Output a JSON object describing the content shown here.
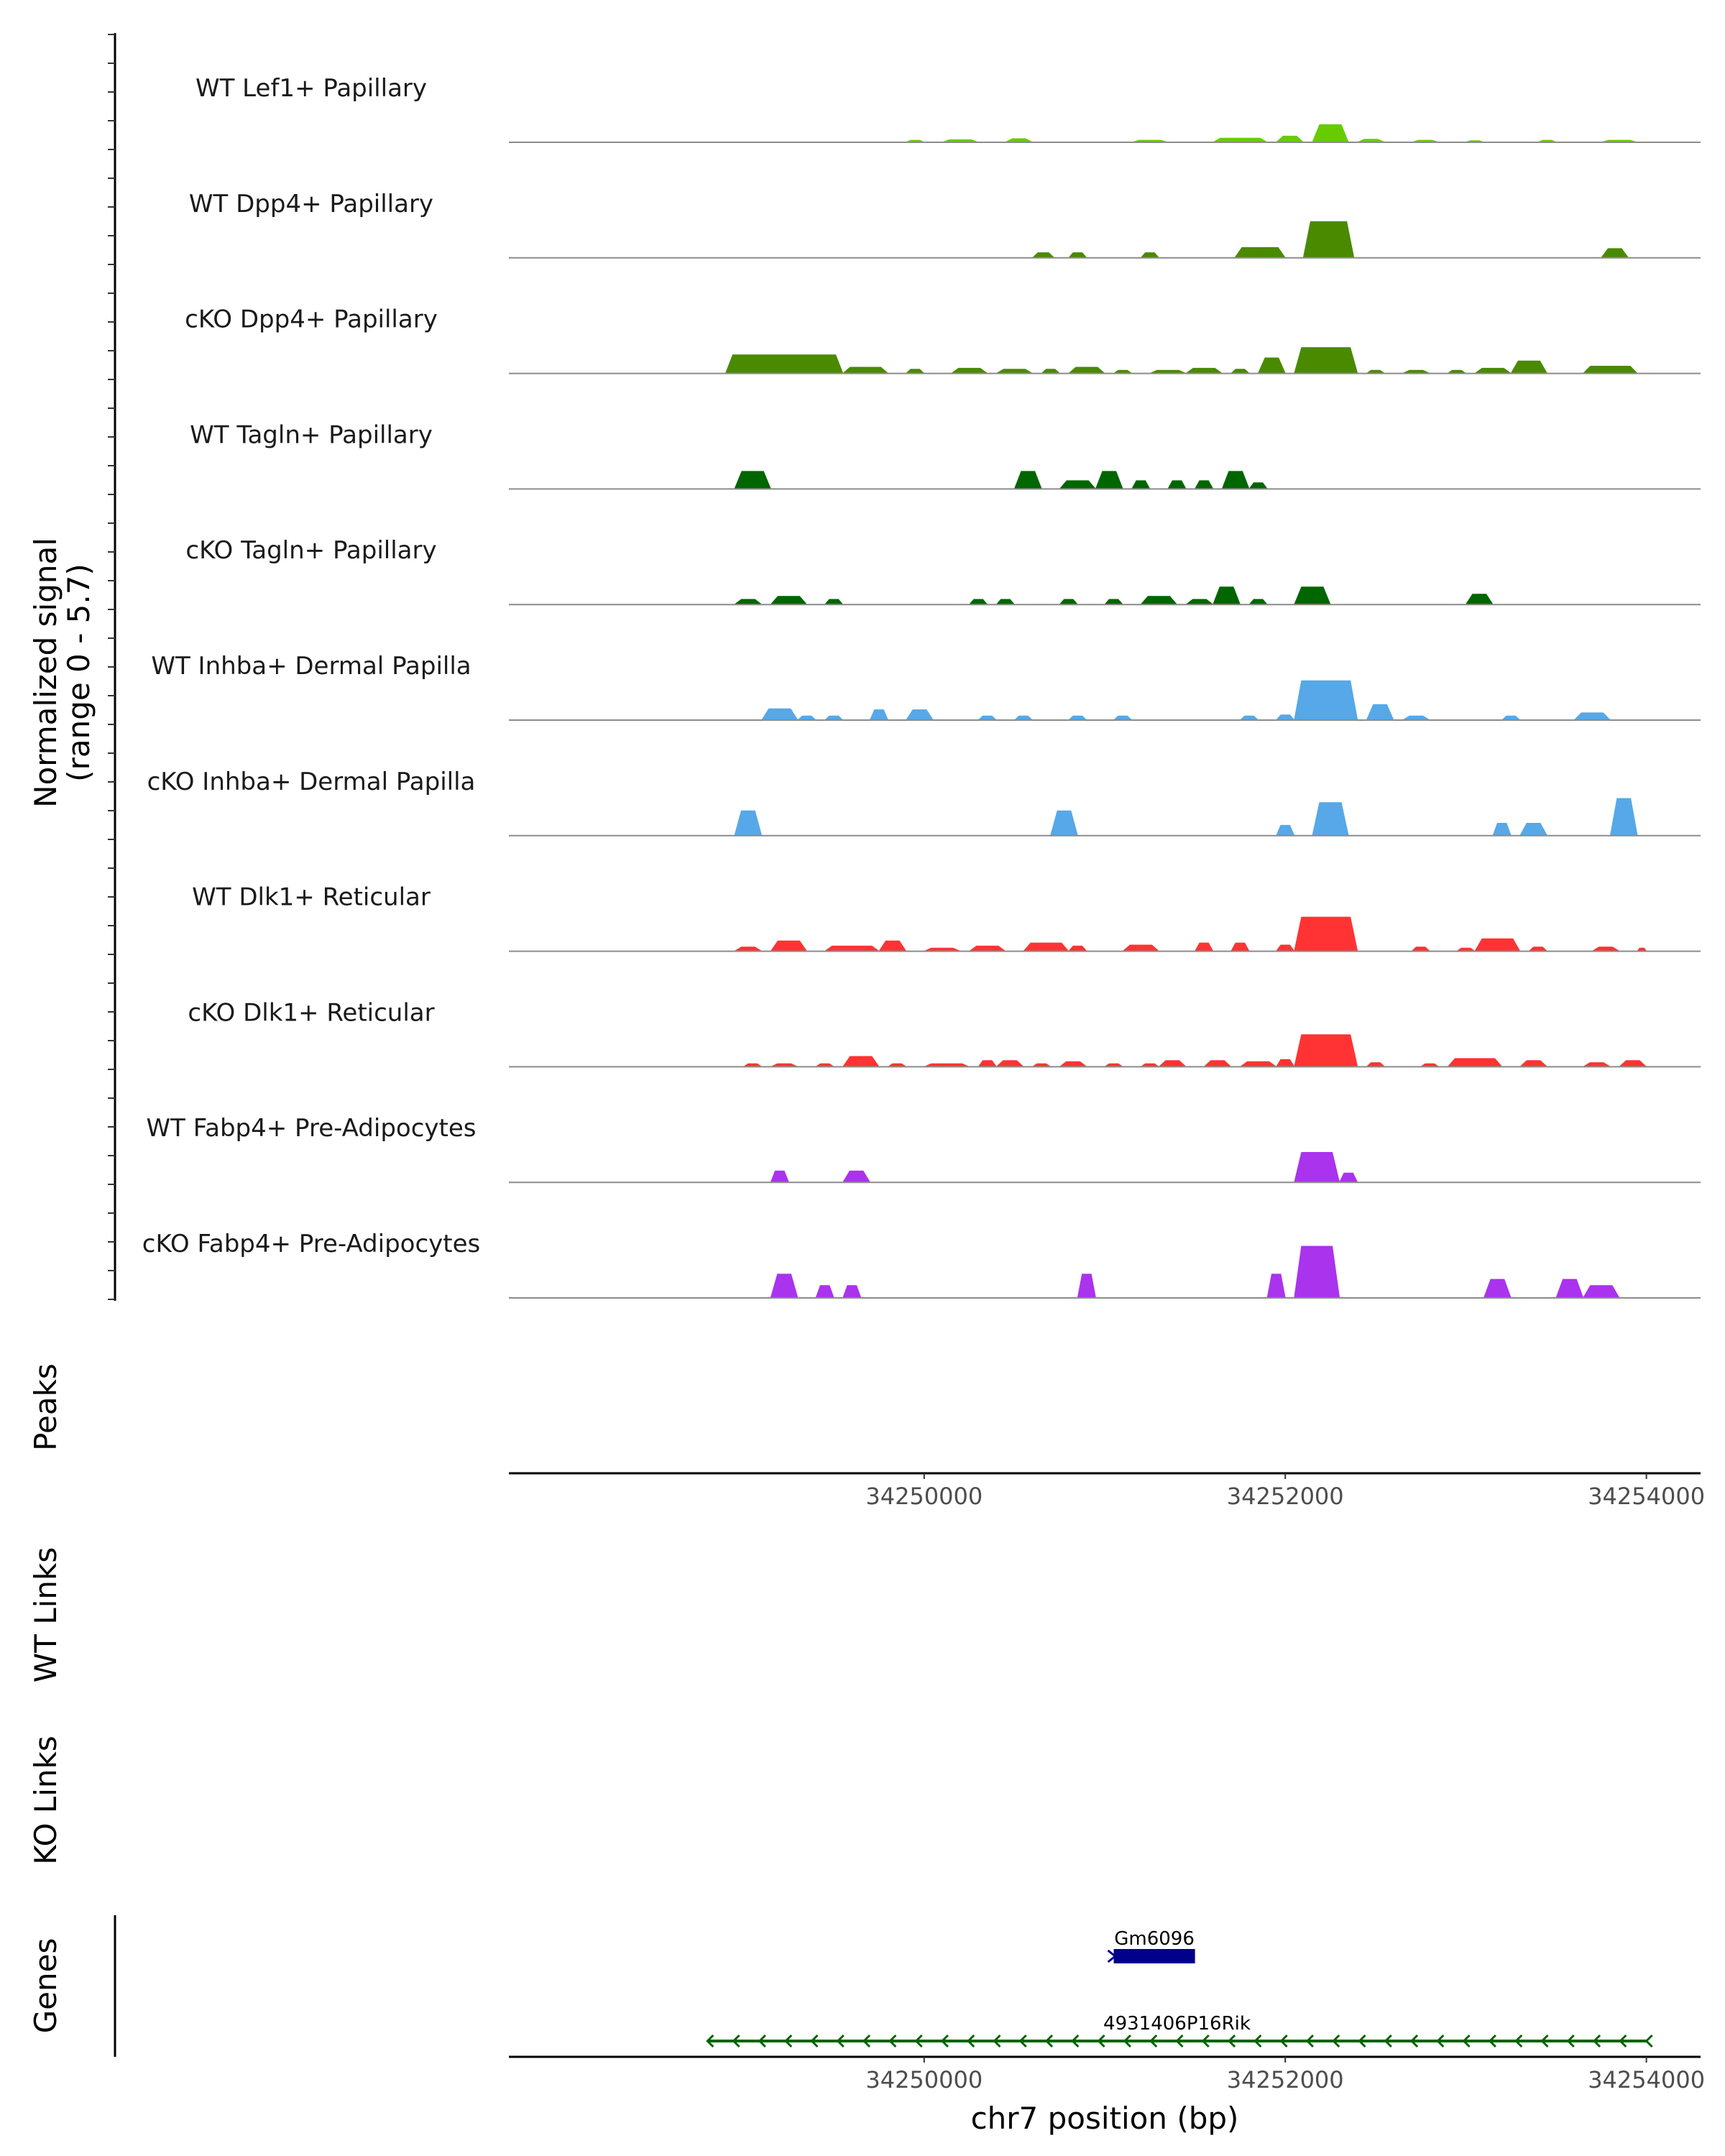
{
  "chart_data": {
    "type": "area",
    "title": "",
    "genomic_range": [
      34248800,
      34254000
    ],
    "xlim": [
      34247700,
      34254300
    ],
    "xlabel": "chr7 position (bp)",
    "x_ticks": [
      34250000,
      34252000,
      34254000
    ],
    "x_tick_labels": [
      "34250000",
      "34252000",
      "34254000"
    ],
    "ylabel": "Normalized signal\n(range 0 - 5.7)",
    "ylabel_lines": [
      "Normalized signal",
      "(range 0 - 5.7)"
    ],
    "ylim": [
      0,
      5.7
    ],
    "grid": false,
    "legend": "none",
    "tracks": [
      {
        "name": "WT Lef1+ Papillary",
        "color": "#66CC00",
        "peaks": [
          [
            34249900,
            34250000,
            0.2
          ],
          [
            34250100,
            34250300,
            0.25
          ],
          [
            34250450,
            34250600,
            0.35
          ],
          [
            34251150,
            34251350,
            0.2
          ],
          [
            34251600,
            34251900,
            0.4
          ],
          [
            34251950,
            34252100,
            0.6
          ],
          [
            34252150,
            34252350,
            1.7
          ],
          [
            34252400,
            34252550,
            0.3
          ],
          [
            34252700,
            34252850,
            0.2
          ],
          [
            34253000,
            34253100,
            0.15
          ],
          [
            34253400,
            34253500,
            0.2
          ],
          [
            34253750,
            34253950,
            0.2
          ]
        ]
      },
      {
        "name": "WT Dpp4+ Papillary",
        "color": "#4A8A00",
        "peaks": [
          [
            34250600,
            34250720,
            0.5
          ],
          [
            34250800,
            34250900,
            0.5
          ],
          [
            34251200,
            34251300,
            0.5
          ],
          [
            34251720,
            34252000,
            1.0
          ],
          [
            34252100,
            34252380,
            3.5
          ],
          [
            34253750,
            34253900,
            0.9
          ]
        ]
      },
      {
        "name": "cKO Dpp4+ Papillary",
        "color": "#4A8A00",
        "peaks": [
          [
            34248900,
            34249550,
            1.8
          ],
          [
            34249550,
            34249800,
            0.6
          ],
          [
            34249900,
            34250000,
            0.4
          ],
          [
            34250150,
            34250350,
            0.5
          ],
          [
            34250400,
            34250600,
            0.4
          ],
          [
            34250650,
            34250750,
            0.4
          ],
          [
            34250800,
            34251000,
            0.6
          ],
          [
            34251050,
            34251150,
            0.3
          ],
          [
            34251250,
            34251450,
            0.3
          ],
          [
            34251450,
            34251650,
            0.5
          ],
          [
            34251700,
            34251800,
            0.4
          ],
          [
            34251850,
            34252000,
            1.5
          ],
          [
            34252050,
            34252400,
            2.5
          ],
          [
            34252450,
            34252550,
            0.3
          ],
          [
            34252650,
            34252800,
            0.3
          ],
          [
            34252900,
            34253000,
            0.3
          ],
          [
            34253050,
            34253250,
            0.5
          ],
          [
            34253250,
            34253450,
            1.2
          ],
          [
            34253650,
            34253950,
            0.7
          ]
        ]
      },
      {
        "name": "WT Tagln+ Papillary",
        "color": "#006600",
        "peaks": [
          [
            34248950,
            34249150,
            1.7
          ],
          [
            34250500,
            34250650,
            1.7
          ],
          [
            34250750,
            34250950,
            0.8
          ],
          [
            34250950,
            34251100,
            1.7
          ],
          [
            34251150,
            34251250,
            0.8
          ],
          [
            34251350,
            34251450,
            0.8
          ],
          [
            34251500,
            34251600,
            0.8
          ],
          [
            34251650,
            34251800,
            1.7
          ],
          [
            34251800,
            34251900,
            0.6
          ]
        ]
      },
      {
        "name": "cKO Tagln+ Papillary",
        "color": "#006600",
        "peaks": [
          [
            34248950,
            34249100,
            0.5
          ],
          [
            34249150,
            34249350,
            0.8
          ],
          [
            34249450,
            34249550,
            0.5
          ],
          [
            34250250,
            34250350,
            0.5
          ],
          [
            34250400,
            34250500,
            0.5
          ],
          [
            34250750,
            34250850,
            0.5
          ],
          [
            34251000,
            34251100,
            0.5
          ],
          [
            34251200,
            34251400,
            0.8
          ],
          [
            34251450,
            34251600,
            0.5
          ],
          [
            34251600,
            34251750,
            1.7
          ],
          [
            34251800,
            34251900,
            0.5
          ],
          [
            34252050,
            34252250,
            1.7
          ],
          [
            34253000,
            34253150,
            1.0
          ]
        ]
      },
      {
        "name": "WT Inhba+ Dermal Papilla",
        "color": "#56A8E8",
        "peaks": [
          [
            34249100,
            34249300,
            1.1
          ],
          [
            34249300,
            34249400,
            0.4
          ],
          [
            34249450,
            34249550,
            0.4
          ],
          [
            34249700,
            34249800,
            1.0
          ],
          [
            34249900,
            34250050,
            1.0
          ],
          [
            34250300,
            34250400,
            0.4
          ],
          [
            34250500,
            34250600,
            0.4
          ],
          [
            34250800,
            34250900,
            0.4
          ],
          [
            34251050,
            34251150,
            0.4
          ],
          [
            34251750,
            34251850,
            0.4
          ],
          [
            34251950,
            34252050,
            0.5
          ],
          [
            34252050,
            34252400,
            3.8
          ],
          [
            34252450,
            34252600,
            1.5
          ],
          [
            34252650,
            34252800,
            0.4
          ],
          [
            34253200,
            34253300,
            0.4
          ],
          [
            34253600,
            34253800,
            0.7
          ]
        ]
      },
      {
        "name": "cKO Inhba+ Dermal Papilla",
        "color": "#56A8E8",
        "peaks": [
          [
            34248950,
            34249100,
            2.4
          ],
          [
            34250700,
            34250850,
            2.4
          ],
          [
            34251950,
            34252050,
            1.0
          ],
          [
            34252150,
            34252350,
            3.2
          ],
          [
            34253150,
            34253250,
            1.2
          ],
          [
            34253300,
            34253450,
            1.2
          ],
          [
            34253800,
            34253950,
            3.6
          ]
        ]
      },
      {
        "name": "WT Dlk1+ Reticular",
        "color": "#FF3333",
        "peaks": [
          [
            34248950,
            34249100,
            0.4
          ],
          [
            34249150,
            34249350,
            1.0
          ],
          [
            34249450,
            34249750,
            0.5
          ],
          [
            34249750,
            34249900,
            1.0
          ],
          [
            34250000,
            34250200,
            0.3
          ],
          [
            34250250,
            34250450,
            0.5
          ],
          [
            34250550,
            34250800,
            0.8
          ],
          [
            34250800,
            34250900,
            0.5
          ],
          [
            34251100,
            34251300,
            0.6
          ],
          [
            34251500,
            34251600,
            0.8
          ],
          [
            34251700,
            34251800,
            0.8
          ],
          [
            34251950,
            34252050,
            0.6
          ],
          [
            34252050,
            34252400,
            3.3
          ],
          [
            34252700,
            34252800,
            0.4
          ],
          [
            34252950,
            34253050,
            0.3
          ],
          [
            34253050,
            34253300,
            1.2
          ],
          [
            34253350,
            34253450,
            0.4
          ],
          [
            34253700,
            34253850,
            0.4
          ],
          [
            34253950,
            34254000,
            0.3
          ]
        ]
      },
      {
        "name": "cKO Dlk1+ Reticular",
        "color": "#FF3333",
        "peaks": [
          [
            34249000,
            34249100,
            0.3
          ],
          [
            34249150,
            34249300,
            0.3
          ],
          [
            34249400,
            34249500,
            0.3
          ],
          [
            34249550,
            34249750,
            1.0
          ],
          [
            34249800,
            34249900,
            0.3
          ],
          [
            34250000,
            34250250,
            0.3
          ],
          [
            34250300,
            34250400,
            0.6
          ],
          [
            34250400,
            34250550,
            0.6
          ],
          [
            34250600,
            34250700,
            0.3
          ],
          [
            34250750,
            34250900,
            0.5
          ],
          [
            34251000,
            34251100,
            0.3
          ],
          [
            34251200,
            34251300,
            0.3
          ],
          [
            34251300,
            34251450,
            0.6
          ],
          [
            34251550,
            34251700,
            0.6
          ],
          [
            34251750,
            34251950,
            0.5
          ],
          [
            34251950,
            34252050,
            0.7
          ],
          [
            34252050,
            34252400,
            3.1
          ],
          [
            34252450,
            34252550,
            0.4
          ],
          [
            34252750,
            34252850,
            0.3
          ],
          [
            34252900,
            34253200,
            0.8
          ],
          [
            34253300,
            34253450,
            0.6
          ],
          [
            34253650,
            34253800,
            0.4
          ],
          [
            34253850,
            34254000,
            0.6
          ]
        ]
      },
      {
        "name": "WT Fabp4+ Pre-Adipocytes",
        "color": "#AA33EE",
        "peaks": [
          [
            34249150,
            34249250,
            1.1
          ],
          [
            34249550,
            34249700,
            1.1
          ],
          [
            34252050,
            34252300,
            2.9
          ],
          [
            34252300,
            34252400,
            0.9
          ]
        ]
      },
      {
        "name": "cKO Fabp4+ Pre-Adipocytes",
        "color": "#AA33EE",
        "peaks": [
          [
            34249150,
            34249300,
            2.3
          ],
          [
            34249400,
            34249500,
            1.2
          ],
          [
            34249550,
            34249650,
            1.2
          ],
          [
            34250850,
            34250950,
            2.3
          ],
          [
            34251900,
            34252000,
            2.3
          ],
          [
            34252050,
            34252300,
            5.0
          ],
          [
            34253100,
            34253250,
            1.8
          ],
          [
            34253500,
            34253650,
            1.8
          ],
          [
            34253650,
            34253850,
            1.2
          ]
        ]
      }
    ],
    "panels": {
      "peaks": "Peaks",
      "wt_links": "WT Links",
      "ko_links": "KO Links",
      "genes": "Genes"
    },
    "genes": [
      {
        "name": "Gm6096",
        "start": 34251050,
        "end": 34251500,
        "strand": "+",
        "color": "#00008B"
      },
      {
        "name": "4931406P16Rik",
        "start": 34248800,
        "end": 34254000,
        "strand": "-",
        "color": "#006400"
      }
    ]
  }
}
